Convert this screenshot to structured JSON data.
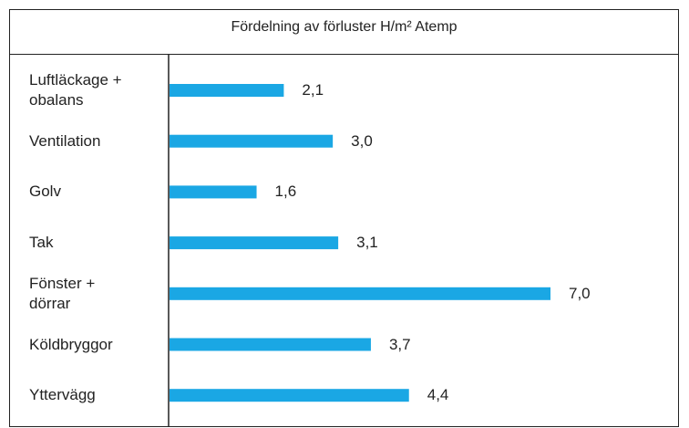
{
  "chart_data": {
    "type": "bar",
    "orientation": "horizontal",
    "title": "Fördelning av förluster H/m² Atemp",
    "categories": [
      "Luftläckage +\nobalans",
      "Ventilation",
      "Golv",
      "Tak",
      "Fönster +\ndörrar",
      "Köldbryggor",
      "Yttervägg"
    ],
    "values": [
      2.1,
      3.0,
      1.6,
      3.1,
      7.0,
      3.7,
      4.4
    ],
    "value_labels": [
      "2,1",
      "3,0",
      "1,6",
      "3,1",
      "7,0",
      "3,7",
      "4,4"
    ],
    "color": "#1aa7e4"
  }
}
